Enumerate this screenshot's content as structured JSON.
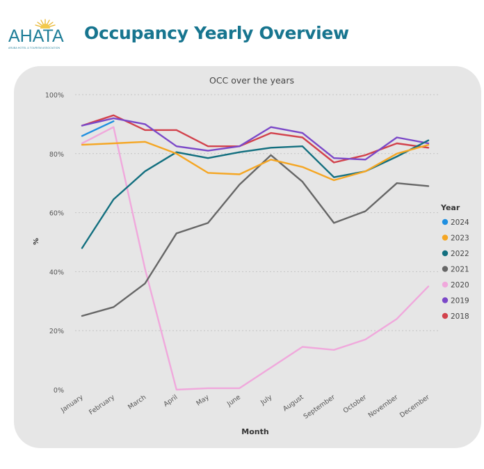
{
  "header": {
    "logo_text": "AHATA",
    "logo_subtext": "ARUBA HOTEL & TOURISM ASSOCIATION",
    "title": "Occupancy Yearly Overview"
  },
  "colors": {
    "brand": "#17758f",
    "panel_background": "#e6e6e6"
  },
  "chart_data": {
    "type": "line",
    "title": "OCC over the years",
    "xlabel": "Month",
    "ylabel": "%",
    "ylim": [
      0,
      100
    ],
    "yticks": [
      0,
      20,
      40,
      60,
      80,
      100
    ],
    "ytick_labels": [
      "0%",
      "20%",
      "40%",
      "60%",
      "80%",
      "100%"
    ],
    "grid": true,
    "legend_title": "Year",
    "legend_position": "right",
    "categories": [
      "January",
      "February",
      "March",
      "April",
      "May",
      "June",
      "July",
      "August",
      "September",
      "October",
      "November",
      "December"
    ],
    "series": [
      {
        "name": "2024",
        "color": "#1f8fe0",
        "values": [
          86,
          91,
          null,
          null,
          null,
          null,
          null,
          null,
          null,
          null,
          null,
          null
        ]
      },
      {
        "name": "2023",
        "color": "#f5a623",
        "values": [
          83,
          83.5,
          84,
          80,
          73.5,
          73,
          78,
          75.5,
          71,
          74,
          80,
          83
        ]
      },
      {
        "name": "2022",
        "color": "#126f7f",
        "values": [
          48,
          64.5,
          74,
          80.5,
          78.5,
          80.5,
          82,
          82.5,
          72,
          74,
          79,
          84.5
        ]
      },
      {
        "name": "2021",
        "color": "#666666",
        "values": [
          25,
          28,
          36,
          53,
          56.5,
          69.5,
          79.5,
          70.5,
          56.5,
          60.5,
          70,
          69
        ]
      },
      {
        "name": "2020",
        "color": "#f0a8dc",
        "values": [
          83.5,
          89,
          41,
          0,
          0.5,
          0.5,
          7.5,
          14.5,
          13.5,
          17,
          24,
          35
        ]
      },
      {
        "name": "2019",
        "color": "#7b48c8",
        "values": [
          89.5,
          92,
          90,
          82.5,
          81,
          82.5,
          89,
          87,
          78.5,
          78,
          85.5,
          83.5
        ]
      },
      {
        "name": "2018",
        "color": "#d2424c",
        "values": [
          89.5,
          93,
          88,
          88,
          82.5,
          82.5,
          87,
          85.5,
          77,
          79.5,
          83.5,
          82
        ]
      }
    ]
  }
}
